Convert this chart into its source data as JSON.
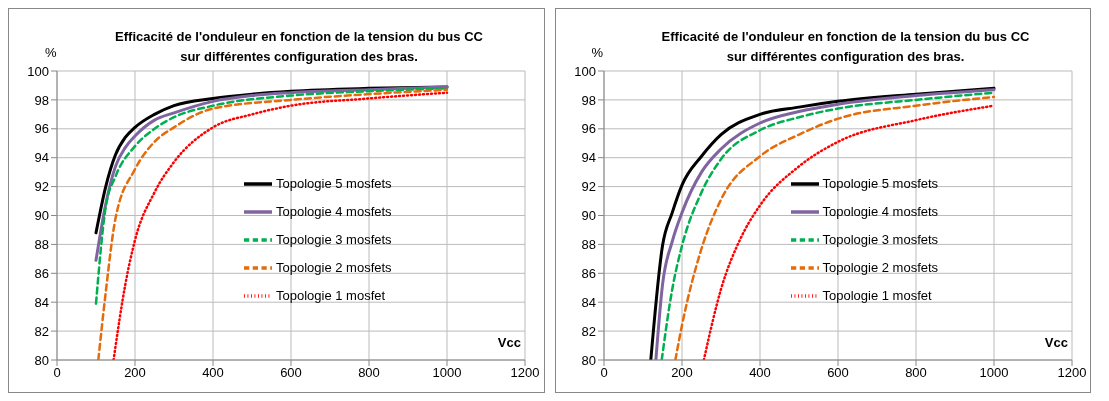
{
  "chart_data": [
    {
      "type": "line",
      "title": "Efficacité de l'onduleur en fonction de la tension du bus CC sur différentes configuration des bras.",
      "xlabel": "Vcc",
      "ylabel": "%",
      "xlim": [
        0,
        1200
      ],
      "xticks": [
        0,
        200,
        400,
        600,
        800,
        1000,
        1200
      ],
      "ylim": [
        80,
        100
      ],
      "yticks": [
        80,
        82,
        84,
        86,
        88,
        90,
        92,
        94,
        96,
        98,
        100
      ],
      "grid": true,
      "legend": "right",
      "series": [
        {
          "name": "Topologie 5 mosfets",
          "color": "#000000",
          "line_style": "solid",
          "x": [
            100,
            125,
            150,
            175,
            200,
            250,
            300,
            400,
            500,
            600,
            800,
            1000
          ],
          "values": [
            88.8,
            92.0,
            94.2,
            95.4,
            96.1,
            97.0,
            97.6,
            98.1,
            98.4,
            98.6,
            98.8,
            98.9
          ]
        },
        {
          "name": "Topologie 4 mosfets",
          "color": "#8064a2",
          "line_style": "solid",
          "x": [
            100,
            125,
            150,
            175,
            200,
            250,
            300,
            400,
            500,
            600,
            800,
            1000
          ],
          "values": [
            86.9,
            90.8,
            93.4,
            94.7,
            95.5,
            96.6,
            97.1,
            97.9,
            98.3,
            98.5,
            98.7,
            98.9
          ]
        },
        {
          "name": "Topologie 3 mosfets",
          "color": "#00b050",
          "line_style": "dashed",
          "x": [
            100,
            125,
            150,
            200,
            250,
            300,
            400,
            600,
            800,
            1000
          ],
          "values": [
            83.9,
            90.6,
            92.7,
            94.8,
            96.0,
            96.8,
            97.6,
            98.3,
            98.6,
            98.8
          ]
        },
        {
          "name": "Topologie 2 mosfets",
          "color": "#e46c0a",
          "line_style": "dashed",
          "x": [
            106,
            125,
            150,
            200,
            250,
            300,
            400,
            600,
            800,
            1000
          ],
          "values": [
            80,
            84.7,
            89.8,
            93.2,
            95.1,
            96.1,
            97.4,
            98.0,
            98.4,
            98.7
          ]
        },
        {
          "name": "Topologie 1 mosfet",
          "color": "#ff0000",
          "line_style": "dotted",
          "x": [
            145,
            175,
            200,
            250,
            300,
            400,
            500,
            600,
            800,
            1000
          ],
          "values": [
            80,
            85.2,
            88.3,
            91.6,
            93.7,
            96.1,
            97.0,
            97.6,
            98.1,
            98.5
          ]
        }
      ]
    },
    {
      "type": "line",
      "title": "Efficacité de l'onduleur en fonction de la tension du bus CC sur différentes configuration des bras.",
      "xlabel": "Vcc",
      "ylabel": "%",
      "xlim": [
        0,
        1200
      ],
      "xticks": [
        0,
        200,
        400,
        600,
        800,
        1000,
        1200
      ],
      "ylim": [
        80,
        100
      ],
      "yticks": [
        80,
        82,
        84,
        86,
        88,
        90,
        92,
        94,
        96,
        98,
        100
      ],
      "grid": true,
      "legend": "right",
      "series": [
        {
          "name": "Topologie 5 mosfets",
          "color": "#000000",
          "line_style": "solid",
          "x": [
            120,
            150,
            175,
            200,
            250,
            300,
            400,
            500,
            600,
            800,
            1000
          ],
          "values": [
            80,
            87.9,
            90.2,
            92.1,
            94.1,
            95.6,
            97.0,
            97.5,
            97.9,
            98.4,
            98.8
          ]
        },
        {
          "name": "Topologie 4 mosfets",
          "color": "#8064a2",
          "line_style": "solid",
          "x": [
            133,
            150,
            175,
            200,
            250,
            300,
            400,
            500,
            600,
            800,
            1000
          ],
          "values": [
            80,
            85.2,
            88.2,
            90.2,
            93.0,
            94.6,
            96.4,
            97.2,
            97.7,
            98.3,
            98.7
          ]
        },
        {
          "name": "Topologie 3 mosfets",
          "color": "#00b050",
          "line_style": "dashed",
          "x": [
            148,
            175,
            200,
            250,
            300,
            400,
            500,
            600,
            800,
            1000
          ],
          "values": [
            80,
            84.9,
            87.9,
            91.6,
            93.9,
            95.9,
            96.8,
            97.4,
            98.0,
            98.5
          ]
        },
        {
          "name": "Topologie 2 mosfets",
          "color": "#e46c0a",
          "line_style": "dashed",
          "x": [
            183,
            200,
            250,
            300,
            400,
            500,
            600,
            800,
            1000
          ],
          "values": [
            80,
            82.4,
            87.7,
            91.1,
            94.1,
            95.6,
            96.7,
            97.6,
            98.2
          ]
        },
        {
          "name": "Topologie 1 mosfet",
          "color": "#ff0000",
          "line_style": "dotted",
          "x": [
            256,
            300,
            350,
            400,
            500,
            600,
            800,
            1000
          ],
          "values": [
            80,
            84.9,
            88.4,
            90.7,
            93.4,
            95.1,
            96.6,
            97.6
          ]
        }
      ]
    }
  ]
}
